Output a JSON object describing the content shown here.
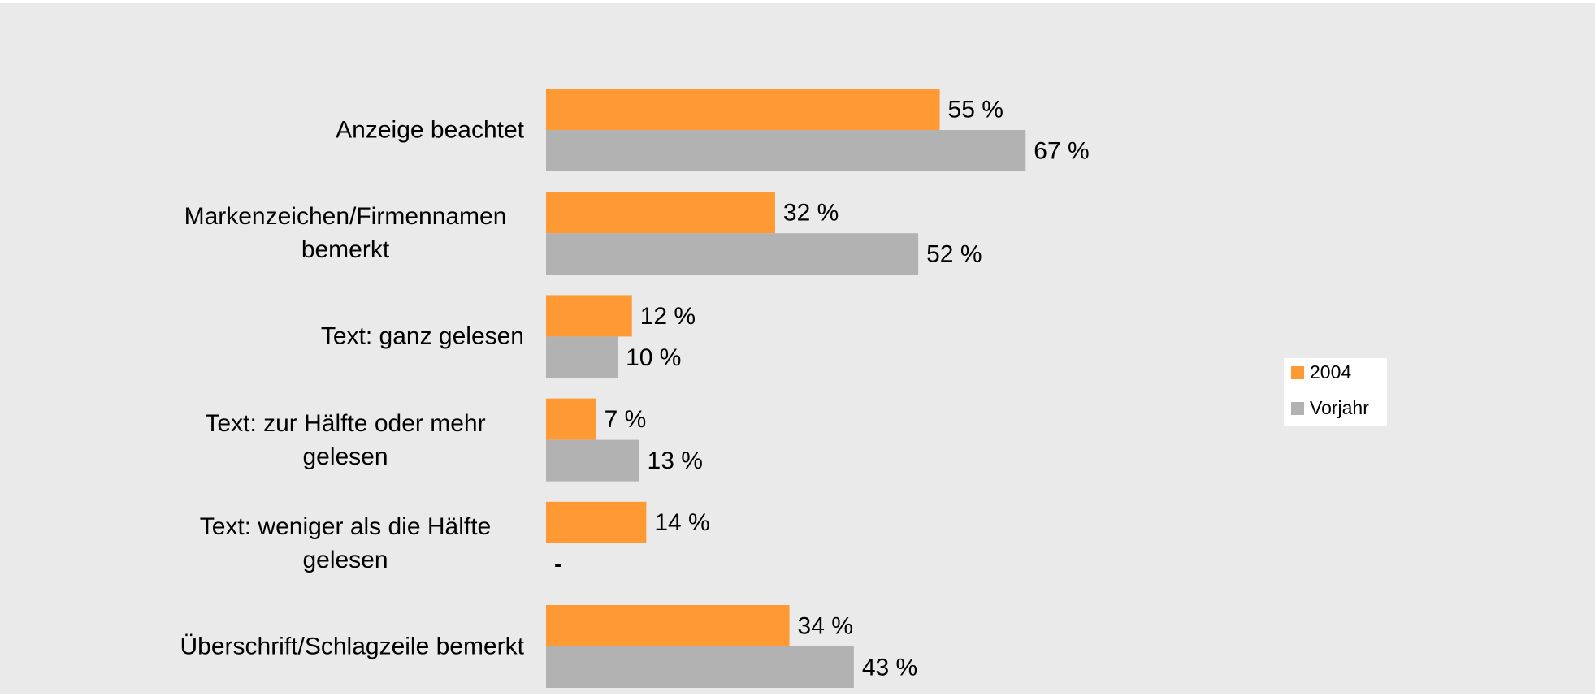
{
  "chart_data": {
    "type": "bar",
    "orientation": "horizontal",
    "categories": [
      "Anzeige beachtet",
      "Markenzeichen/Firmennamen bemerkt",
      "Text: ganz gelesen",
      "Text: zur Hälfte oder mehr gelesen",
      "Text: weniger als die Hälfte gelesen",
      "Überschrift/Schlagzeile bemerkt"
    ],
    "series": [
      {
        "name": "2004",
        "color": "#ff9933",
        "values": [
          55,
          32,
          12,
          7,
          14,
          34
        ],
        "value_labels": [
          "55 %",
          "32 %",
          "12 %",
          "7 %",
          "14 %",
          "34 %"
        ]
      },
      {
        "name": "Vorjahr",
        "color": "#b2b2b2",
        "values": [
          67,
          52,
          10,
          13,
          null,
          43
        ],
        "value_labels": [
          "67 %",
          "52 %",
          "10 %",
          "13 %",
          "-",
          "43 %"
        ]
      }
    ],
    "legend": "right"
  }
}
